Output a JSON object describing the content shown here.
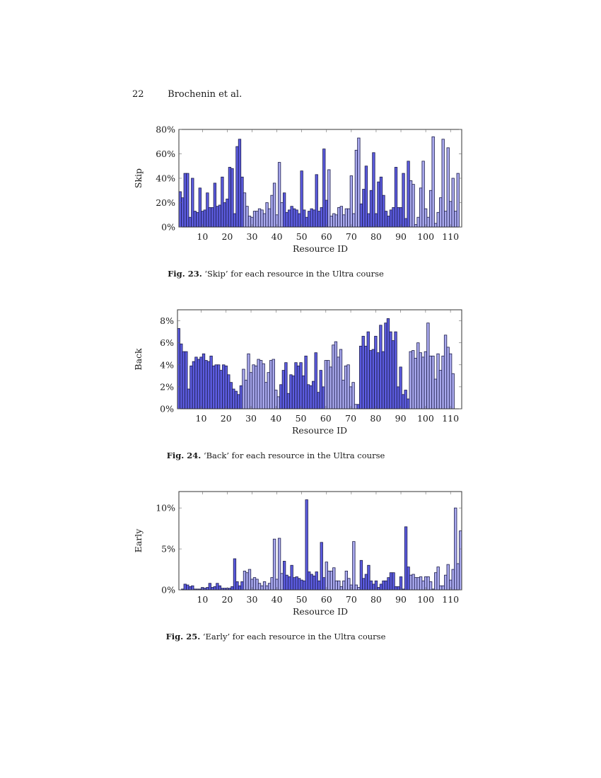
{
  "header": {
    "page_number": "22",
    "authors": "Brochenin et al."
  },
  "colors": {
    "dark_bar": "#5c5ce0",
    "light_bar": "#a9a9ee",
    "bar_stroke": "#1c1c4a",
    "axis": "#333333"
  },
  "figures": [
    {
      "fig_label": "Fig. 23.",
      "caption_text": "‘Skip’ for each resource in the Ultra course"
    },
    {
      "fig_label": "Fig. 24.",
      "caption_text": "‘Back’ for each resource in the Ultra course"
    },
    {
      "fig_label": "Fig. 25.",
      "caption_text": "‘Early’ for each resource in the Ultra course"
    }
  ],
  "chart_data": [
    {
      "type": "bar",
      "title": "'Skip' for each resource in the Ultra course",
      "xlabel": "Resource ID",
      "ylabel": "Skip",
      "xlim": [
        0.5,
        114.5
      ],
      "ylim": [
        0,
        80
      ],
      "xticks": [
        10,
        20,
        30,
        40,
        50,
        60,
        70,
        80,
        90,
        100,
        110
      ],
      "yticks": [
        0,
        20,
        40,
        60,
        80
      ],
      "ytick_labels": [
        "0%",
        "20%",
        "40%",
        "60%",
        "80%"
      ],
      "y_unit": "%",
      "grid": false,
      "light_ranges": [
        [
          27,
          42
        ],
        [
          61,
          73
        ],
        [
          94,
          114
        ]
      ],
      "x": [
        1,
        2,
        3,
        4,
        5,
        6,
        7,
        8,
        9,
        10,
        11,
        12,
        13,
        14,
        15,
        16,
        17,
        18,
        19,
        20,
        21,
        22,
        23,
        24,
        25,
        26,
        27,
        28,
        29,
        30,
        31,
        32,
        33,
        34,
        35,
        36,
        37,
        38,
        39,
        40,
        41,
        42,
        43,
        44,
        45,
        46,
        47,
        48,
        49,
        50,
        51,
        52,
        53,
        54,
        55,
        56,
        57,
        58,
        59,
        60,
        61,
        62,
        63,
        64,
        65,
        66,
        67,
        68,
        69,
        70,
        71,
        72,
        73,
        74,
        75,
        76,
        77,
        78,
        79,
        80,
        81,
        82,
        83,
        84,
        85,
        86,
        87,
        88,
        89,
        90,
        91,
        92,
        93,
        94,
        95,
        96,
        97,
        98,
        99,
        100,
        101,
        102,
        103,
        104,
        105,
        106,
        107,
        108,
        109,
        110,
        111,
        112,
        113,
        114
      ],
      "values": [
        29,
        24,
        44,
        44,
        8,
        40,
        13,
        12,
        32,
        13,
        14,
        28,
        16,
        16,
        36,
        17,
        18,
        41,
        20,
        23,
        49,
        48,
        11,
        66,
        72,
        41,
        28,
        17,
        9,
        8,
        13,
        13,
        15,
        14,
        11,
        20,
        15,
        26,
        36,
        10,
        53,
        20,
        28,
        12,
        14,
        17,
        15,
        14,
        11,
        46,
        14,
        8,
        13,
        15,
        14,
        43,
        13,
        16,
        64,
        22,
        47,
        9,
        11,
        10,
        16,
        17,
        10,
        15,
        15,
        42,
        11,
        63,
        73,
        19,
        31,
        50,
        11,
        30,
        61,
        11,
        37,
        41,
        26,
        13,
        9,
        14,
        16,
        49,
        16,
        16,
        44,
        7,
        54,
        38,
        35,
        2,
        8,
        32,
        54,
        15,
        8,
        30,
        74,
        3,
        12,
        24,
        72,
        13,
        65,
        21,
        40,
        13,
        44,
        0
      ],
      "series": [
        {
          "name": "Skip",
          "values": "see values"
        }
      ]
    },
    {
      "type": "bar",
      "title": "'Back' for each resource in the Ultra course",
      "xlabel": "Resource ID",
      "ylabel": "Back",
      "xlim": [
        0.5,
        114.5
      ],
      "ylim": [
        0,
        9
      ],
      "xticks": [
        10,
        20,
        30,
        40,
        50,
        60,
        70,
        80,
        90,
        100,
        110
      ],
      "yticks": [
        0,
        2,
        4,
        6,
        8
      ],
      "ytick_labels": [
        "0%",
        "2%",
        "4%",
        "6%",
        "8%"
      ],
      "y_unit": "%",
      "grid": false,
      "light_ranges": [
        [
          27,
          41
        ],
        [
          60,
          72
        ],
        [
          94,
          111
        ]
      ],
      "x": [
        1,
        2,
        3,
        4,
        5,
        6,
        7,
        8,
        9,
        10,
        11,
        12,
        13,
        14,
        15,
        16,
        17,
        18,
        19,
        20,
        21,
        22,
        23,
        24,
        25,
        26,
        27,
        28,
        29,
        30,
        31,
        32,
        33,
        34,
        35,
        36,
        37,
        38,
        39,
        40,
        41,
        42,
        43,
        44,
        45,
        46,
        47,
        48,
        49,
        50,
        51,
        52,
        53,
        54,
        55,
        56,
        57,
        58,
        59,
        60,
        61,
        62,
        63,
        64,
        65,
        66,
        67,
        68,
        69,
        70,
        71,
        72,
        73,
        74,
        75,
        76,
        77,
        78,
        79,
        80,
        81,
        82,
        83,
        84,
        85,
        86,
        87,
        88,
        89,
        90,
        91,
        92,
        93,
        94,
        95,
        96,
        97,
        98,
        99,
        100,
        101,
        102,
        103,
        104,
        105,
        106,
        107,
        108,
        109,
        110,
        111
      ],
      "values": [
        7.3,
        5.9,
        5.2,
        5.2,
        1.8,
        3.9,
        4.3,
        4.7,
        4.5,
        4.7,
        5.0,
        4.4,
        4.3,
        4.8,
        3.9,
        4.0,
        4.0,
        3.5,
        4.0,
        3.9,
        3.1,
        2.4,
        1.8,
        1.6,
        1.3,
        2.1,
        3.6,
        2.6,
        5.0,
        3.3,
        4.0,
        3.9,
        4.5,
        4.4,
        4.1,
        2.4,
        3.3,
        4.4,
        4.5,
        1.7,
        1.1,
        2.2,
        3.5,
        4.2,
        1.4,
        3.1,
        3.0,
        4.2,
        3.9,
        4.2,
        3.0,
        4.8,
        2.2,
        2.1,
        2.5,
        5.1,
        1.5,
        3.5,
        2.0,
        4.4,
        4.4,
        3.8,
        5.8,
        6.1,
        4.7,
        5.4,
        2.6,
        3.9,
        4.0,
        2.0,
        2.4,
        0.4,
        0.4,
        5.7,
        6.6,
        5.7,
        7.0,
        5.3,
        5.4,
        6.6,
        5.1,
        7.6,
        5.2,
        7.8,
        8.2,
        7.0,
        6.2,
        7.0,
        2.0,
        3.8,
        1.3,
        1.7,
        0.9,
        5.2,
        5.3,
        4.6,
        6.0,
        5.1,
        4.7,
        5.2,
        7.8,
        4.8,
        4.8,
        2.7,
        5.0,
        3.5,
        4.8,
        6.7,
        5.6,
        5.0,
        3.2
      ],
      "series": [
        {
          "name": "Back",
          "values": "see values"
        }
      ]
    },
    {
      "type": "bar",
      "title": "'Early' for each resource in the Ultra course",
      "xlabel": "Resource ID",
      "ylabel": "Early",
      "xlim": [
        0.5,
        114.5
      ],
      "ylim": [
        0,
        12
      ],
      "xticks": [
        10,
        20,
        30,
        40,
        50,
        60,
        70,
        80,
        90,
        100,
        110
      ],
      "yticks": [
        0,
        5,
        10
      ],
      "ytick_labels": [
        "0%",
        "5%",
        "10%"
      ],
      "y_unit": "%",
      "grid": false,
      "light_ranges": [
        [
          27,
          42
        ],
        [
          60,
          73
        ],
        [
          94,
          114
        ]
      ],
      "x": [
        1,
        2,
        3,
        4,
        5,
        6,
        7,
        8,
        9,
        10,
        11,
        12,
        13,
        14,
        15,
        16,
        17,
        18,
        19,
        20,
        21,
        22,
        23,
        24,
        25,
        26,
        27,
        28,
        29,
        30,
        31,
        32,
        33,
        34,
        35,
        36,
        37,
        38,
        39,
        40,
        41,
        42,
        43,
        44,
        45,
        46,
        47,
        48,
        49,
        50,
        51,
        52,
        53,
        54,
        55,
        56,
        57,
        58,
        59,
        60,
        61,
        62,
        63,
        64,
        65,
        66,
        67,
        68,
        69,
        70,
        71,
        72,
        73,
        74,
        75,
        76,
        77,
        78,
        79,
        80,
        81,
        82,
        83,
        84,
        85,
        86,
        87,
        88,
        89,
        90,
        91,
        92,
        93,
        94,
        95,
        96,
        97,
        98,
        99,
        100,
        101,
        102,
        103,
        104,
        105,
        106,
        107,
        108,
        109,
        110,
        111,
        112,
        113,
        114
      ],
      "values": [
        0,
        0.1,
        0.7,
        0.6,
        0.4,
        0.5,
        0.1,
        0.1,
        0.1,
        0.3,
        0.2,
        0.3,
        0.8,
        0.3,
        0.4,
        0.8,
        0.5,
        0.2,
        0.2,
        0.2,
        0.2,
        0.4,
        3.8,
        1.0,
        0.5,
        1.0,
        2.3,
        2.1,
        2.5,
        1.3,
        1.5,
        1.3,
        0.8,
        0.5,
        1.0,
        0.5,
        0.8,
        1.5,
        6.2,
        1.3,
        6.3,
        2.0,
        3.5,
        1.8,
        1.6,
        3.0,
        1.5,
        1.6,
        1.4,
        1.2,
        1.1,
        11.0,
        2.2,
        1.9,
        1.7,
        2.2,
        1.1,
        5.8,
        1.5,
        3.4,
        2.3,
        2.3,
        2.7,
        1.1,
        1.1,
        0.4,
        1.1,
        2.3,
        1.4,
        0.6,
        5.9,
        0.6,
        0.3,
        3.6,
        1.4,
        1.9,
        3.0,
        1.1,
        0.7,
        1.1,
        0.3,
        0.7,
        1.1,
        1.1,
        1.5,
        2.1,
        2.1,
        0.4,
        0.4,
        1.6,
        0.1,
        7.7,
        2.8,
        1.8,
        1.9,
        1.5,
        1.5,
        1.6,
        1.1,
        1.6,
        1.6,
        1.0,
        0.1,
        2.1,
        2.8,
        0.5,
        0.5,
        1.8,
        3.1,
        1.2,
        2.5,
        10.0,
        3.2,
        7.2
      ],
      "series": [
        {
          "name": "Early",
          "values": "see values"
        }
      ]
    }
  ]
}
